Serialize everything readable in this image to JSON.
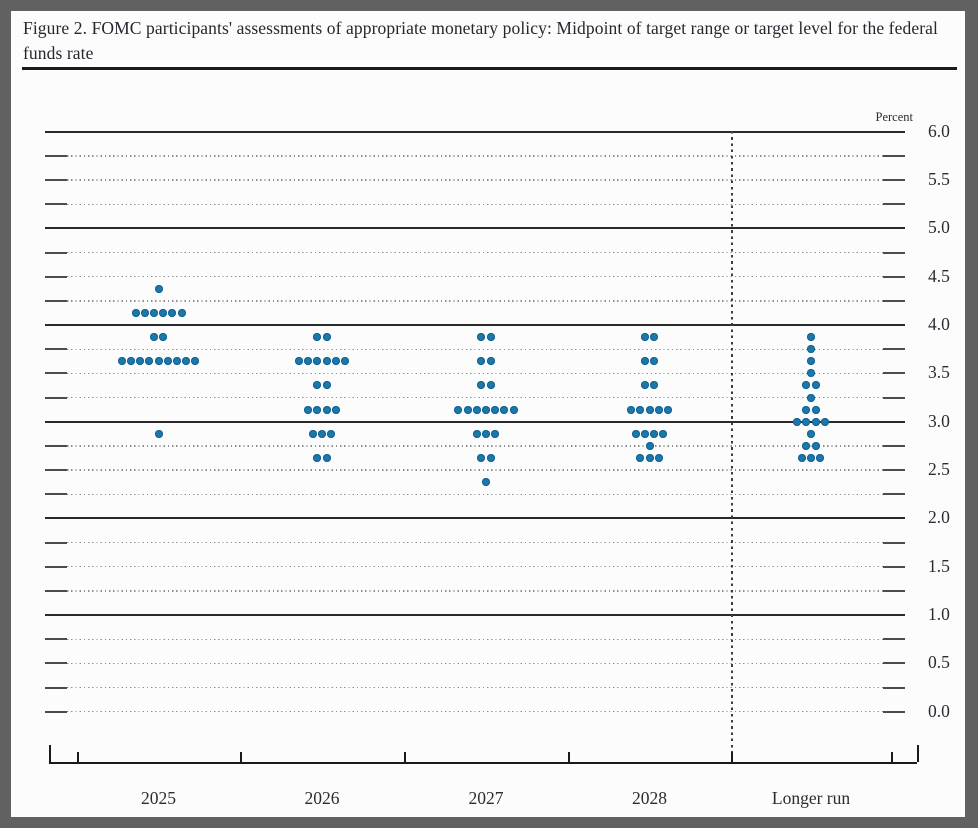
{
  "figure": {
    "title": "Figure 2. FOMC participants' assessments of appropriate monetary policy: Midpoint of target range or target level for the federal funds rate"
  },
  "chart_data": {
    "type": "scatter",
    "subtype": "fomc-dot-plot",
    "title": "Figure 2. FOMC participants' assessments of appropriate monetary policy: Midpoint of target range or target level for the federal funds rate",
    "unit_label": "Percent",
    "x_categories": [
      "2025",
      "2026",
      "2027",
      "2028",
      "Longer run"
    ],
    "y_axis": {
      "min": 0.0,
      "max": 6.0,
      "grid_step": 0.25,
      "label_step": 0.5,
      "tick_labels": [
        "6.0",
        "5.5",
        "5.0",
        "4.5",
        "4.0",
        "3.5",
        "3.0",
        "2.5",
        "2.0",
        "1.5",
        "1.0",
        "0.5",
        "0.0"
      ],
      "solid_lines_at": [
        6.0,
        5.0,
        4.0,
        3.0,
        2.0,
        1.0
      ],
      "grid_on": true
    },
    "dot_color": "#1a78aa",
    "dots_per_column": 19,
    "separator_after_category": "2028",
    "legend_position": "none",
    "series": [
      {
        "category": "2025",
        "dots": [
          {
            "rate": 4.375,
            "count": 1
          },
          {
            "rate": 4.125,
            "count": 6
          },
          {
            "rate": 3.875,
            "count": 2
          },
          {
            "rate": 3.625,
            "count": 9
          },
          {
            "rate": 2.875,
            "count": 1
          }
        ]
      },
      {
        "category": "2026",
        "dots": [
          {
            "rate": 3.875,
            "count": 2
          },
          {
            "rate": 3.625,
            "count": 6
          },
          {
            "rate": 3.375,
            "count": 2
          },
          {
            "rate": 3.125,
            "count": 4
          },
          {
            "rate": 2.875,
            "count": 3
          },
          {
            "rate": 2.625,
            "count": 2
          }
        ]
      },
      {
        "category": "2027",
        "dots": [
          {
            "rate": 3.875,
            "count": 2
          },
          {
            "rate": 3.625,
            "count": 2
          },
          {
            "rate": 3.375,
            "count": 2
          },
          {
            "rate": 3.125,
            "count": 7
          },
          {
            "rate": 2.875,
            "count": 3
          },
          {
            "rate": 2.625,
            "count": 2
          },
          {
            "rate": 2.375,
            "count": 1
          }
        ]
      },
      {
        "category": "2028",
        "dots": [
          {
            "rate": 3.875,
            "count": 2
          },
          {
            "rate": 3.625,
            "count": 2
          },
          {
            "rate": 3.375,
            "count": 2
          },
          {
            "rate": 3.125,
            "count": 5
          },
          {
            "rate": 2.875,
            "count": 4
          },
          {
            "rate": 2.75,
            "count": 1
          },
          {
            "rate": 2.625,
            "count": 3
          }
        ]
      },
      {
        "category": "Longer run",
        "dots": [
          {
            "rate": 3.875,
            "count": 1
          },
          {
            "rate": 3.75,
            "count": 1
          },
          {
            "rate": 3.625,
            "count": 1
          },
          {
            "rate": 3.5,
            "count": 1
          },
          {
            "rate": 3.375,
            "count": 2
          },
          {
            "rate": 3.25,
            "count": 1
          },
          {
            "rate": 3.125,
            "count": 2
          },
          {
            "rate": 3.0,
            "count": 4
          },
          {
            "rate": 2.875,
            "count": 1
          },
          {
            "rate": 2.75,
            "count": 2
          },
          {
            "rate": 2.625,
            "count": 3
          }
        ]
      }
    ]
  }
}
